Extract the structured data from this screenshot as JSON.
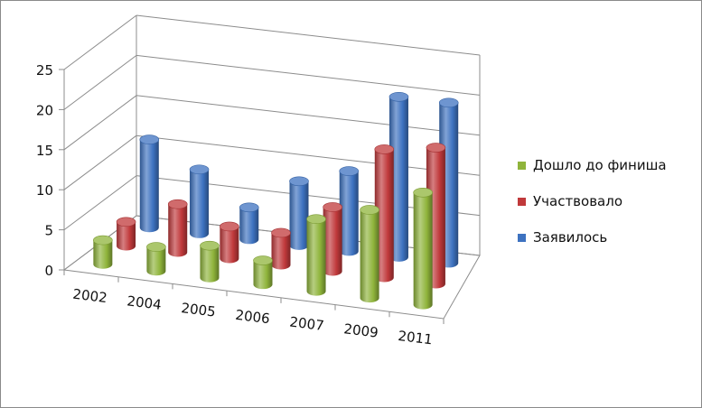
{
  "chart_data": {
    "type": "bar",
    "title": "",
    "xlabel": "",
    "ylabel": "",
    "ylim": [
      0,
      25
    ],
    "yticks": [
      0,
      5,
      10,
      15,
      20,
      25
    ],
    "grid": true,
    "legend_position": "right",
    "categories": [
      "2002",
      "2004",
      "2005",
      "2006",
      "2007",
      "2009",
      "2011"
    ],
    "series": [
      {
        "name": "Дошло до финиша",
        "color": "#8fb43b",
        "values": [
          3,
          3,
          4,
          3,
          9,
          11,
          14
        ]
      },
      {
        "name": "Участвовало",
        "color": "#c0393b",
        "values": [
          3,
          6,
          4,
          4,
          8,
          16,
          17
        ]
      },
      {
        "name": "Заявилось",
        "color": "#3d72c0",
        "values": [
          11,
          8,
          4,
          8,
          10,
          20,
          20
        ]
      }
    ]
  }
}
